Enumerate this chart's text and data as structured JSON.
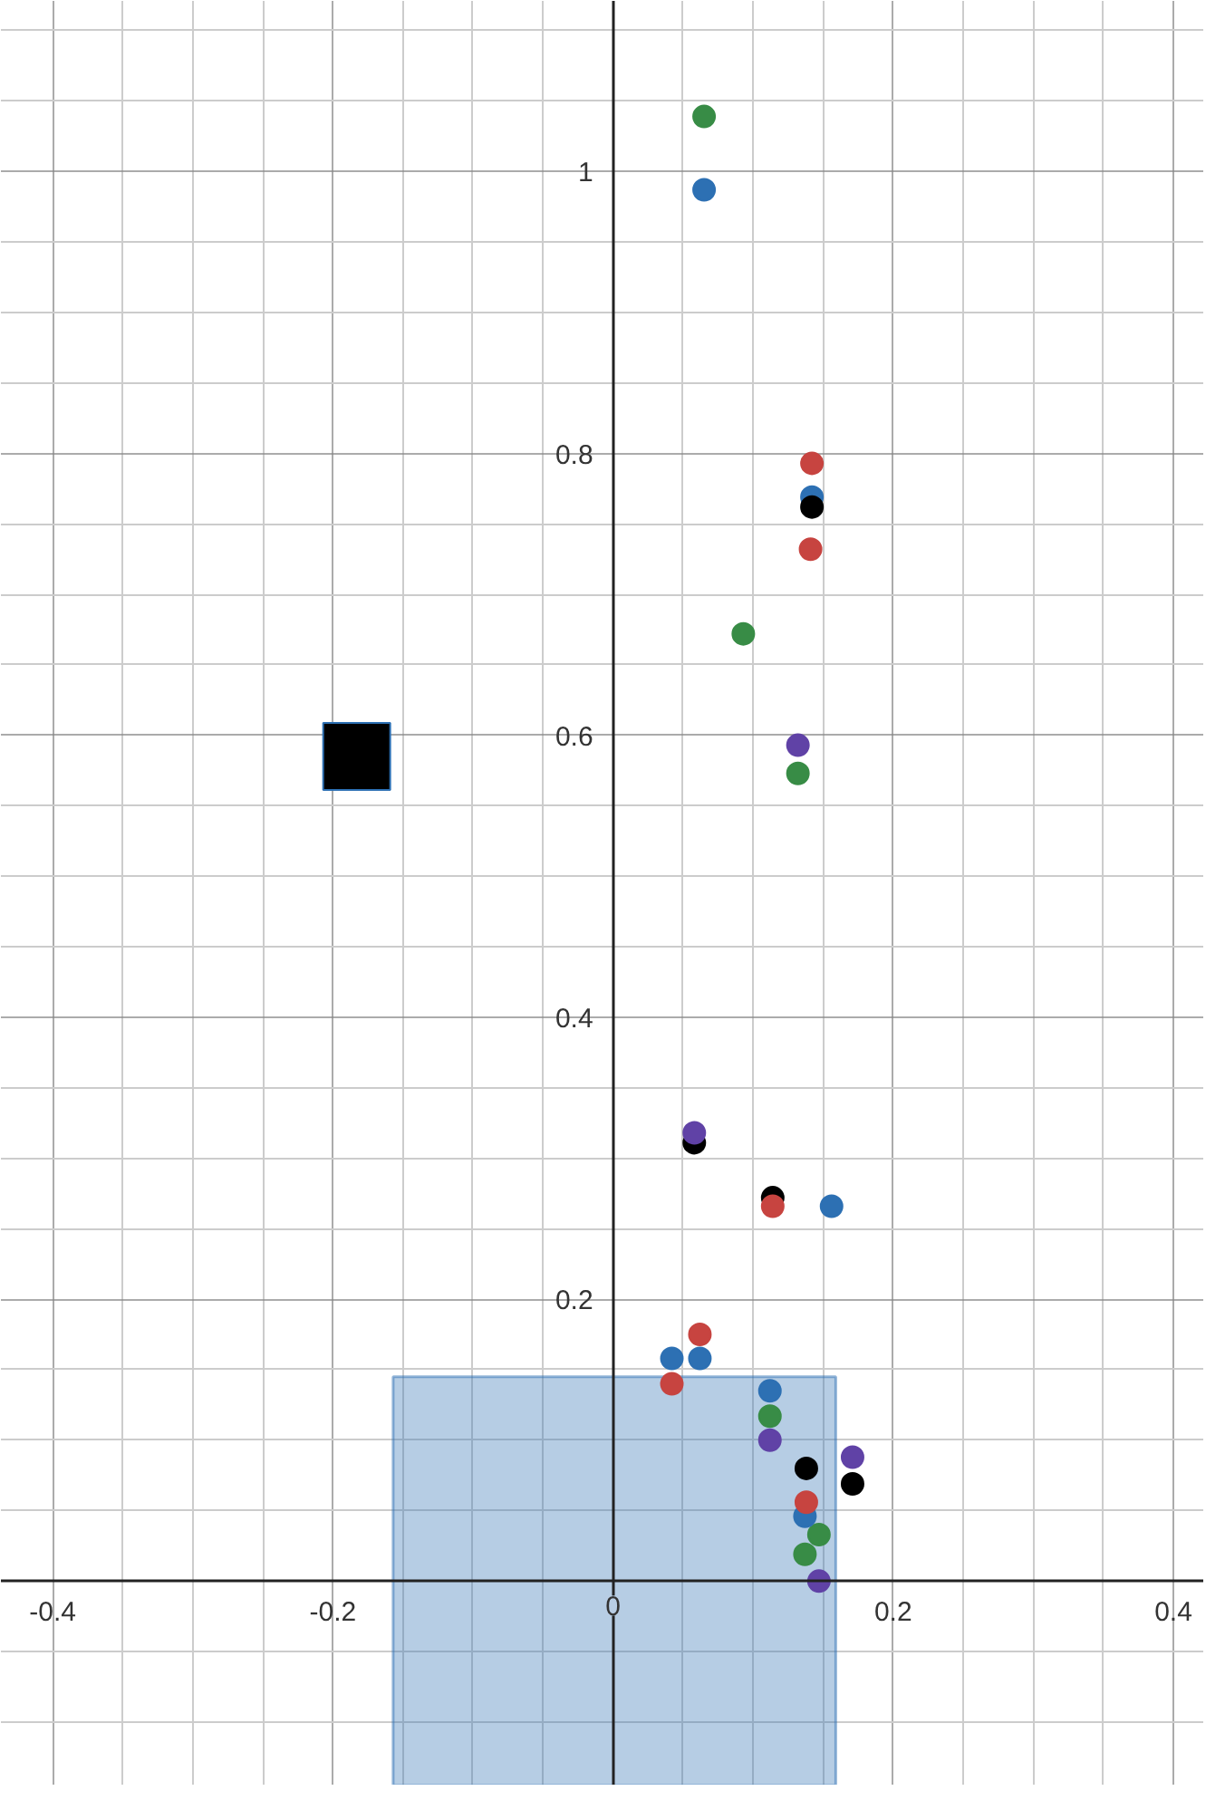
{
  "chart_data": {
    "type": "scatter",
    "marker": "circle",
    "grid": true,
    "xlim": [
      -0.437,
      0.422
    ],
    "ylim": [
      -0.145,
      1.121
    ],
    "xticks": [
      -0.4,
      -0.2,
      0,
      0.2,
      0.4
    ],
    "yticks": [
      0.2,
      0.4,
      0.6,
      0.8,
      1
    ],
    "series": [
      {
        "type": "histogram",
        "color": "#2d70b3",
        "bins": [
          -0.157,
          0.159
        ],
        "base": [
          -0.145
        ],
        "values": [
          0.29
        ]
      },
      {
        "color": "#000000",
        "marker": "square",
        "x": [
          -0.183
        ],
        "values": [
          0.585
        ]
      },
      {
        "color": "#388c46",
        "x": [
          0.065,
          0.093,
          0.132,
          0.112,
          0.147,
          0.137
        ],
        "values": [
          1.039,
          0.672,
          0.573,
          0.117,
          0.033,
          0.019
        ]
      },
      {
        "color": "#2d70b3",
        "x": [
          0.065,
          0.142,
          0.156,
          0.042,
          0.062,
          0.112,
          0.137
        ],
        "values": [
          0.987,
          0.769,
          0.266,
          0.158,
          0.158,
          0.135,
          0.046
        ]
      },
      {
        "color": "#000000",
        "x": [
          0.142,
          0.058,
          0.114,
          0.171,
          0.138
        ],
        "values": [
          0.762,
          0.311,
          0.272,
          0.069,
          0.08
        ]
      },
      {
        "color": "#c74440",
        "x": [
          0.142,
          0.141,
          0.114,
          0.062,
          0.042,
          0.138
        ],
        "values": [
          0.793,
          0.732,
          0.266,
          0.175,
          0.14,
          0.056
        ]
      },
      {
        "color": "#6042a6",
        "x": [
          0.132,
          0.058,
          0.112,
          0.171,
          0.147
        ],
        "values": [
          0.593,
          0.318,
          0.1,
          0.088,
          0.0
        ]
      }
    ]
  }
}
